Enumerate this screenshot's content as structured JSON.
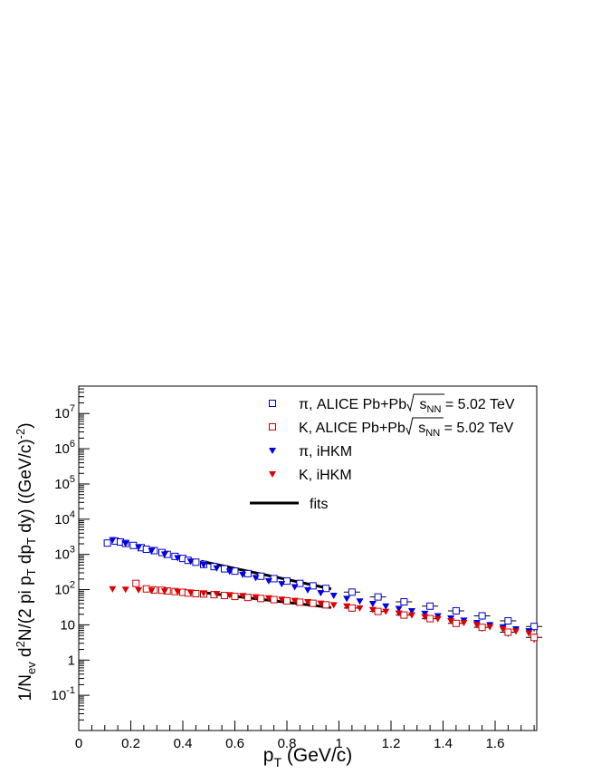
{
  "chart_data": {
    "type": "scatter",
    "x_axis": {
      "label_main": "p",
      "label_sub": "T",
      "label_rest": " (GeV/c)",
      "range": [
        0,
        1.76
      ],
      "tick_labels": [
        "0",
        "0.2",
        "0.4",
        "0.6",
        "0.8",
        "1",
        "1.2",
        "1.4",
        "1.6"
      ]
    },
    "y_axis": {
      "label": "1/N_ev d^2N/(2 pi p_T dp_T dy) ((GeV/c)^-2)",
      "scale": "log",
      "range": [
        0.01,
        60000000
      ],
      "tick_labels": [
        "10^-1",
        "1",
        "10",
        "10^2",
        "10^3",
        "10^4",
        "10^5",
        "10^6",
        "10^7"
      ]
    },
    "legend": {
      "placement": "top-right",
      "entries": [
        {
          "series": "pi_alice",
          "text": "π, ALICE Pb+Pb",
          "sqrt": "s",
          "sqrt_sub": "NN",
          "tail": " = 5.02 TeV"
        },
        {
          "series": "k_alice",
          "text": "K, ALICE Pb+Pb",
          "sqrt": "s",
          "sqrt_sub": "NN",
          "tail": " = 5.02 TeV"
        },
        {
          "series": "pi_ihkm",
          "text": "π, iHKM"
        },
        {
          "series": "k_ihkm",
          "text": "K, iHKM"
        },
        {
          "series": "fits",
          "text": "fits"
        }
      ]
    },
    "series": [
      {
        "key": "pi_alice",
        "color": "#0000cc",
        "marker": "open-square",
        "x": [
          0.11,
          0.14,
          0.16,
          0.18,
          0.21,
          0.24,
          0.26,
          0.29,
          0.32,
          0.34,
          0.37,
          0.4,
          0.42,
          0.45,
          0.48,
          0.52,
          0.56,
          0.6,
          0.65,
          0.7,
          0.75,
          0.8,
          0.85,
          0.9,
          0.95,
          1.05,
          1.15,
          1.25,
          1.35,
          1.45,
          1.55,
          1.65,
          1.75
        ],
        "y": [
          2100,
          2400,
          2250,
          2050,
          1800,
          1550,
          1400,
          1280,
          1130,
          1000,
          880,
          770,
          680,
          600,
          520,
          450,
          390,
          335,
          285,
          240,
          205,
          175,
          150,
          128,
          108,
          85,
          62,
          45,
          34,
          25,
          18,
          13,
          9
        ],
        "yerr": [
          0,
          0,
          0,
          0,
          0,
          0,
          0,
          0,
          0,
          0,
          0,
          0,
          0,
          0,
          0,
          0,
          0,
          0,
          0,
          0,
          0,
          0,
          0,
          0,
          0,
          10,
          8,
          7,
          6,
          5,
          4,
          3,
          2.5
        ]
      },
      {
        "key": "k_alice",
        "color": "#cc0000",
        "marker": "open-square",
        "x": [
          0.22,
          0.26,
          0.29,
          0.32,
          0.34,
          0.37,
          0.4,
          0.42,
          0.45,
          0.48,
          0.52,
          0.56,
          0.6,
          0.65,
          0.7,
          0.75,
          0.8,
          0.85,
          0.9,
          0.95,
          1.05,
          1.15,
          1.25,
          1.35,
          1.45,
          1.55,
          1.65,
          1.75
        ],
        "y": [
          150,
          105,
          98,
          96,
          92,
          88,
          84,
          80,
          77,
          75,
          72,
          68,
          64,
          60,
          56,
          52,
          48,
          44,
          41,
          37,
          30,
          24,
          19,
          15,
          11,
          8.5,
          6.2,
          4.4
        ],
        "yerr": [
          0,
          0,
          0,
          0,
          0,
          0,
          0,
          0,
          0,
          0,
          0,
          0,
          0,
          0,
          0,
          0,
          0,
          0,
          0,
          0,
          4,
          3.5,
          3,
          2.5,
          2.2,
          2,
          1.6,
          1.3
        ]
      },
      {
        "key": "pi_ihkm",
        "color": "#0000e0",
        "marker": "filled-triangle-down",
        "x": [
          0.13,
          0.18,
          0.23,
          0.28,
          0.33,
          0.38,
          0.43,
          0.48,
          0.53,
          0.58,
          0.63,
          0.68,
          0.73,
          0.78,
          0.83,
          0.88,
          0.93,
          0.98,
          1.03,
          1.08,
          1.13,
          1.18,
          1.23,
          1.28,
          1.33,
          1.38,
          1.43,
          1.48,
          1.53,
          1.58,
          1.63,
          1.68,
          1.73
        ],
        "y": [
          2600,
          2050,
          1620,
          1280,
          1010,
          800,
          640,
          510,
          410,
          330,
          268,
          218,
          178,
          146,
          120,
          98,
          81,
          68,
          56,
          47,
          40,
          34,
          29,
          25,
          21,
          18,
          15.5,
          13.5,
          11.5,
          10,
          8.7,
          7.6,
          6.7
        ]
      },
      {
        "key": "k_ihkm",
        "color": "#dd0000",
        "marker": "filled-triangle-down",
        "x": [
          0.13,
          0.18,
          0.23,
          0.28,
          0.33,
          0.38,
          0.43,
          0.48,
          0.53,
          0.58,
          0.63,
          0.68,
          0.73,
          0.78,
          0.83,
          0.88,
          0.93,
          0.98,
          1.03,
          1.08,
          1.13,
          1.18,
          1.23,
          1.28,
          1.33,
          1.38,
          1.43,
          1.48,
          1.53,
          1.58,
          1.63,
          1.68,
          1.73
        ],
        "y": [
          105,
          102,
          98,
          95,
          91,
          88,
          84,
          80,
          76,
          71,
          67,
          62,
          58,
          53,
          49,
          45,
          41,
          37,
          34,
          30,
          27,
          24,
          21.5,
          19,
          17,
          15,
          13,
          11.5,
          10,
          8.8,
          7.6,
          6.6,
          5.8
        ]
      }
    ],
    "fits": [
      {
        "x": [
          0.47,
          0.97
        ],
        "y": [
          640,
          105
        ]
      },
      {
        "x": [
          0.47,
          0.97
        ],
        "y": [
          84,
          31
        ]
      }
    ]
  }
}
